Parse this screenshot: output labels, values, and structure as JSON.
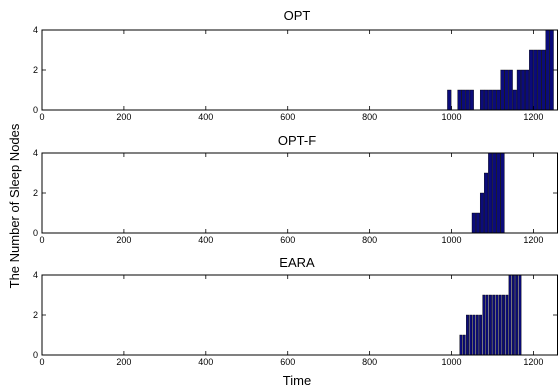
{
  "figure": {
    "ylabel": "The Number of Sleep Nodes",
    "xlabel": "Time",
    "bar_color": "#0b0b7a"
  },
  "chart_data": [
    {
      "type": "bar",
      "title": "OPT",
      "xlim": [
        0,
        1260
      ],
      "ylim": [
        0,
        4
      ],
      "xticks": [
        0,
        200,
        400,
        600,
        800,
        1000,
        1200
      ],
      "yticks": [
        0,
        2,
        4
      ],
      "bar_width": 9,
      "x": [
        990,
        1005,
        1015,
        1025,
        1035,
        1045,
        1060,
        1070,
        1080,
        1090,
        1100,
        1110,
        1120,
        1130,
        1140,
        1150,
        1160,
        1170,
        1180,
        1190,
        1200,
        1210,
        1220,
        1230,
        1240
      ],
      "values": [
        1,
        0,
        1,
        1,
        1,
        1,
        0,
        1,
        1,
        1,
        1,
        1,
        2,
        2,
        2,
        1,
        2,
        2,
        2,
        3,
        3,
        3,
        3,
        4,
        4
      ]
    },
    {
      "type": "bar",
      "title": "OPT-F",
      "xlim": [
        0,
        1260
      ],
      "ylim": [
        0,
        4
      ],
      "xticks": [
        0,
        200,
        400,
        600,
        800,
        1000,
        1200
      ],
      "yticks": [
        0,
        2,
        4
      ],
      "bar_width": 9,
      "x": [
        1050,
        1060,
        1070,
        1080,
        1090,
        1100,
        1110,
        1120
      ],
      "values": [
        1,
        1,
        2,
        3,
        4,
        4,
        4,
        4
      ]
    },
    {
      "type": "bar",
      "title": "EARA",
      "xlim": [
        0,
        1260
      ],
      "ylim": [
        0,
        4
      ],
      "xticks": [
        0,
        200,
        400,
        600,
        800,
        1000,
        1200
      ],
      "yticks": [
        0,
        2,
        4
      ],
      "bar_width": 6,
      "x": [
        1020,
        1028,
        1036,
        1044,
        1052,
        1060,
        1068,
        1076,
        1084,
        1092,
        1100,
        1108,
        1116,
        1124,
        1132,
        1140,
        1148,
        1156,
        1164
      ],
      "values": [
        1,
        1,
        2,
        2,
        2,
        2,
        2,
        3,
        3,
        3,
        3,
        3,
        3,
        3,
        3,
        4,
        4,
        4,
        4
      ]
    }
  ]
}
